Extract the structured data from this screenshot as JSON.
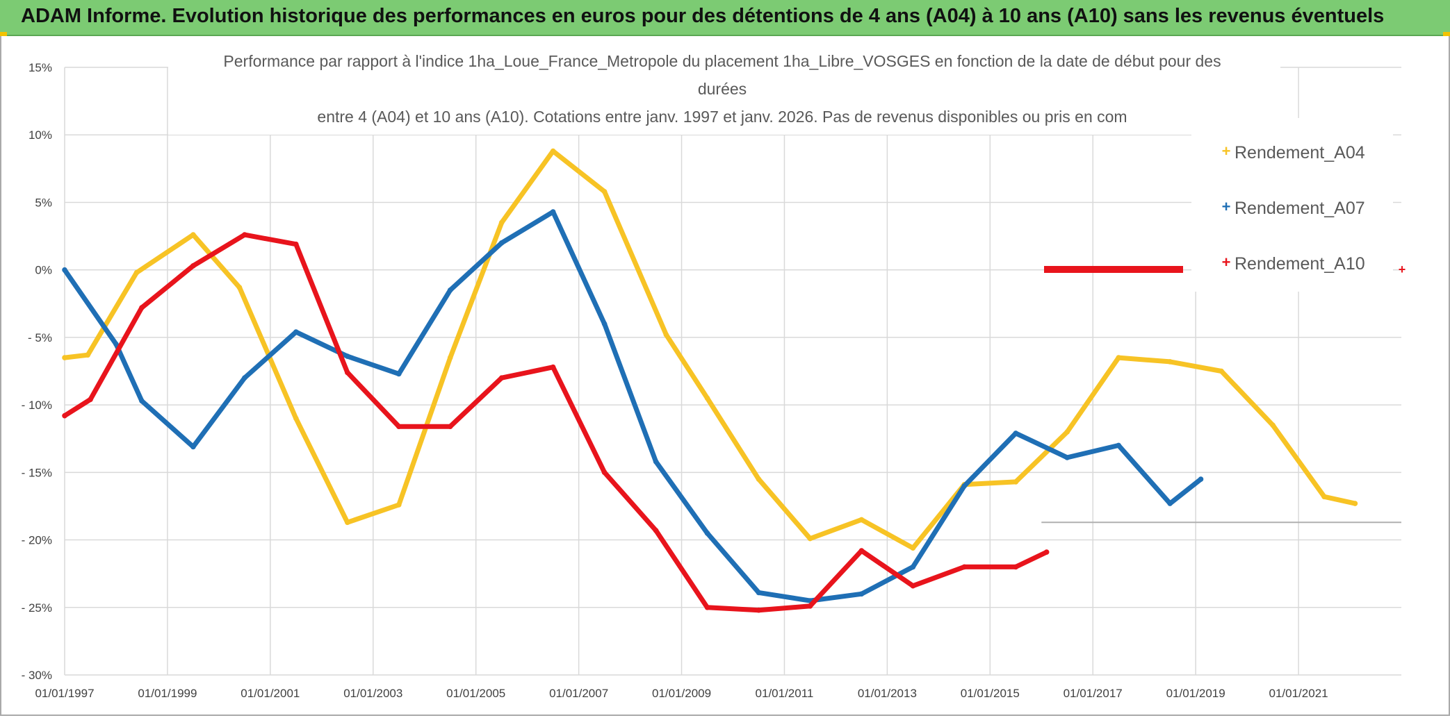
{
  "banner": {
    "title": "ADAM Informe. Evolution historique des performances en euros pour des détentions de 4 ans (A04) à 10 ans (A10) sans les revenus éventuels"
  },
  "colors": {
    "banner_bg": "#7ccb73",
    "A04": "#f7c325",
    "A07": "#1f6fb5",
    "A10": "#e8141c",
    "grid": "#d9d9d9"
  },
  "chart_data": {
    "type": "line",
    "title_lines": [
      "Performance par rapport à l'indice 1ha_Loue_France_Metropole  du placement 1ha_Libre_VOSGES en fonction de la date de début pour des",
      "durées",
      "entre 4 (A04) et 10 ans (A10). Cotations entre janv. 1997 et janv. 2026. Pas de revenus disponibles ou pris en com"
    ],
    "xlabel": "",
    "ylabel": "",
    "xlim": [
      1997.0,
      2023.0
    ],
    "ylim": [
      -30,
      15
    ],
    "x_ticks": [
      {
        "x": 1997,
        "label": "01/01/1997"
      },
      {
        "x": 1999,
        "label": "01/01/1999"
      },
      {
        "x": 2001,
        "label": "01/01/2001"
      },
      {
        "x": 2003,
        "label": "01/01/2003"
      },
      {
        "x": 2005,
        "label": "01/01/2005"
      },
      {
        "x": 2007,
        "label": "01/01/2007"
      },
      {
        "x": 2009,
        "label": "01/01/2009"
      },
      {
        "x": 2011,
        "label": "01/01/2011"
      },
      {
        "x": 2013,
        "label": "01/01/2013"
      },
      {
        "x": 2015,
        "label": "01/01/2015"
      },
      {
        "x": 2017,
        "label": "01/01/2017"
      },
      {
        "x": 2019,
        "label": "01/01/2019"
      },
      {
        "x": 2021,
        "label": "01/01/2021"
      }
    ],
    "y_ticks": [
      {
        "y": 15,
        "label": "15%"
      },
      {
        "y": 10,
        "label": "10%"
      },
      {
        "y": 5,
        "label": "5%"
      },
      {
        "y": 0,
        "label": "0%"
      },
      {
        "y": -5,
        "label": "- 5%"
      },
      {
        "y": -10,
        "label": "- 10%"
      },
      {
        "y": -15,
        "label": "- 15%"
      },
      {
        "y": -20,
        "label": "- 20%"
      },
      {
        "y": -25,
        "label": "- 25%"
      },
      {
        "y": -30,
        "label": "- 30%"
      }
    ],
    "legend_position": "right",
    "series": [
      {
        "name": "Rendement_A04",
        "color": "#f7c325",
        "points": [
          [
            1997.0,
            -6.5
          ],
          [
            1997.45,
            -6.3
          ],
          [
            1998.4,
            -0.2
          ],
          [
            1999.5,
            2.6
          ],
          [
            2000.4,
            -1.3
          ],
          [
            2001.5,
            -11.0
          ],
          [
            2002.5,
            -18.7
          ],
          [
            2003.5,
            -17.4
          ],
          [
            2004.5,
            -6.5
          ],
          [
            2005.5,
            3.5
          ],
          [
            2006.5,
            8.8
          ],
          [
            2007.5,
            5.8
          ],
          [
            2008.7,
            -4.8
          ],
          [
            2009.5,
            -9.5
          ],
          [
            2010.5,
            -15.5
          ],
          [
            2011.5,
            -19.9
          ],
          [
            2012.5,
            -18.5
          ],
          [
            2013.5,
            -20.6
          ],
          [
            2014.5,
            -15.9
          ],
          [
            2015.5,
            -15.7
          ],
          [
            2016.5,
            -12.0
          ],
          [
            2017.5,
            -6.5
          ],
          [
            2018.5,
            -6.8
          ],
          [
            2019.5,
            -7.5
          ],
          [
            2020.5,
            -11.5
          ],
          [
            2021.5,
            -16.8
          ],
          [
            2022.1,
            -17.3
          ]
        ]
      },
      {
        "name": "Rendement_A07",
        "color": "#1f6fb5",
        "points": [
          [
            1997.0,
            0.0
          ],
          [
            1998.0,
            -5.5
          ],
          [
            1998.5,
            -9.7
          ],
          [
            1999.5,
            -13.1
          ],
          [
            2000.5,
            -8.0
          ],
          [
            2001.5,
            -4.6
          ],
          [
            2002.5,
            -6.4
          ],
          [
            2003.5,
            -7.7
          ],
          [
            2004.5,
            -1.5
          ],
          [
            2005.5,
            2.0
          ],
          [
            2006.5,
            4.3
          ],
          [
            2007.5,
            -4.0
          ],
          [
            2008.5,
            -14.2
          ],
          [
            2009.5,
            -19.5
          ],
          [
            2010.5,
            -23.9
          ],
          [
            2011.5,
            -24.5
          ],
          [
            2012.5,
            -24.0
          ],
          [
            2013.5,
            -22.0
          ],
          [
            2014.5,
            -16.0
          ],
          [
            2015.5,
            -12.1
          ],
          [
            2016.5,
            -13.9
          ],
          [
            2017.5,
            -13.0
          ],
          [
            2018.5,
            -17.3
          ],
          [
            2019.1,
            -15.5
          ]
        ]
      },
      {
        "name": "Rendement_A10",
        "color": "#e8141c",
        "points": [
          [
            1997.0,
            -10.8
          ],
          [
            1997.5,
            -9.6
          ],
          [
            1998.5,
            -2.8
          ],
          [
            1999.5,
            0.3
          ],
          [
            2000.5,
            2.6
          ],
          [
            2001.5,
            1.9
          ],
          [
            2002.5,
            -7.6
          ],
          [
            2003.5,
            -11.6
          ],
          [
            2004.5,
            -11.6
          ],
          [
            2005.5,
            -8.0
          ],
          [
            2006.5,
            -7.2
          ],
          [
            2007.5,
            -15.0
          ],
          [
            2008.5,
            -19.3
          ],
          [
            2009.5,
            -25.0
          ],
          [
            2010.5,
            -25.2
          ],
          [
            2011.5,
            -24.9
          ],
          [
            2012.5,
            -20.8
          ],
          [
            2013.5,
            -23.4
          ],
          [
            2014.5,
            -22.0
          ],
          [
            2015.5,
            -22.0
          ],
          [
            2016.1,
            -20.9
          ]
        ]
      }
    ]
  }
}
